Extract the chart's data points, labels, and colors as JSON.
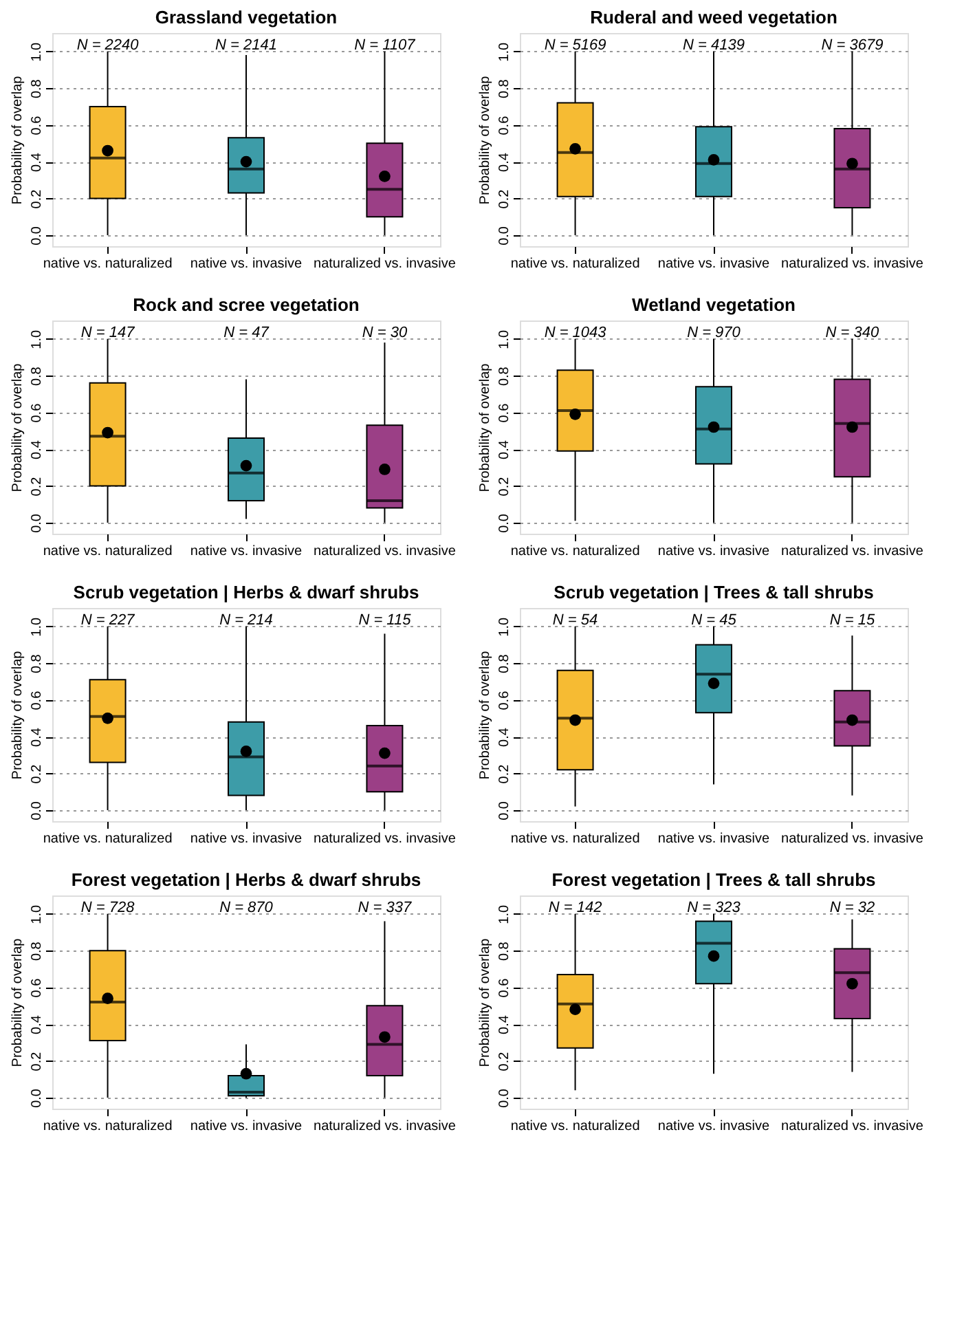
{
  "chart_data": [
    {
      "type": "box",
      "title": "Grassland vegetation",
      "ylabel": "Probability of overlap",
      "categories": [
        "native vs. naturalized",
        "native vs. invasive",
        "naturalized vs. invasive"
      ],
      "colors": [
        "#f6bb33",
        "#3d9ca8",
        "#9b3f86"
      ],
      "boxes": [
        {
          "low": 0,
          "q1": 0.2,
          "median": 0.42,
          "q3": 0.7,
          "high": 1.0,
          "mean": 0.46
        },
        {
          "low": 0,
          "q1": 0.23,
          "median": 0.36,
          "q3": 0.53,
          "high": 0.98,
          "mean": 0.4
        },
        {
          "low": 0,
          "q1": 0.1,
          "median": 0.25,
          "q3": 0.5,
          "high": 1.0,
          "mean": 0.32
        }
      ],
      "annotations": [
        "N = 2240",
        "N = 2141",
        "N = 1107"
      ],
      "ylim": [
        -0.06,
        1.1
      ],
      "yticks": [
        {
          "value": 0,
          "label": "0.0"
        },
        {
          "value": 0.2,
          "label": "0.2"
        },
        {
          "value": 0.4,
          "label": "0.4"
        },
        {
          "value": 0.6,
          "label": "0.6"
        },
        {
          "value": 0.8,
          "label": "0.8"
        },
        {
          "value": 1.0,
          "label": "1.0"
        }
      ],
      "grid": "y",
      "marker": "circle"
    },
    {
      "type": "box",
      "title": "Ruderal and weed vegetation",
      "ylabel": "Probability of overlap",
      "categories": [
        "native vs. naturalized",
        "native vs. invasive",
        "naturalized vs. invasive"
      ],
      "colors": [
        "#f6bb33",
        "#3d9ca8",
        "#9b3f86"
      ],
      "boxes": [
        {
          "low": 0,
          "q1": 0.21,
          "median": 0.45,
          "q3": 0.72,
          "high": 1.0,
          "mean": 0.47
        },
        {
          "low": 0,
          "q1": 0.21,
          "median": 0.39,
          "q3": 0.59,
          "high": 1.0,
          "mean": 0.41
        },
        {
          "low": 0,
          "q1": 0.15,
          "median": 0.36,
          "q3": 0.58,
          "high": 1.0,
          "mean": 0.39
        }
      ],
      "annotations": [
        "N = 5169",
        "N = 4139",
        "N = 3679"
      ],
      "ylim": [
        -0.06,
        1.1
      ],
      "yticks": [
        {
          "value": 0,
          "label": "0.0"
        },
        {
          "value": 0.2,
          "label": "0.2"
        },
        {
          "value": 0.4,
          "label": "0.4"
        },
        {
          "value": 0.6,
          "label": "0.6"
        },
        {
          "value": 0.8,
          "label": "0.8"
        },
        {
          "value": 1.0,
          "label": "1.0"
        }
      ],
      "grid": "y",
      "marker": "circle"
    },
    {
      "type": "box",
      "title": "Rock and scree vegetation",
      "ylabel": "Probability of overlap",
      "categories": [
        "native vs. naturalized",
        "native vs. invasive",
        "naturalized vs. invasive"
      ],
      "colors": [
        "#f6bb33",
        "#3d9ca8",
        "#9b3f86"
      ],
      "boxes": [
        {
          "low": 0,
          "q1": 0.2,
          "median": 0.47,
          "q3": 0.76,
          "high": 1.0,
          "mean": 0.49
        },
        {
          "low": 0.02,
          "q1": 0.12,
          "median": 0.27,
          "q3": 0.46,
          "high": 0.78,
          "mean": 0.31
        },
        {
          "low": 0,
          "q1": 0.08,
          "median": 0.12,
          "q3": 0.53,
          "high": 0.98,
          "mean": 0.29
        }
      ],
      "annotations": [
        "N = 147",
        "N = 47",
        "N = 30"
      ],
      "ylim": [
        -0.06,
        1.1
      ],
      "yticks": [
        {
          "value": 0,
          "label": "0.0"
        },
        {
          "value": 0.2,
          "label": "0.2"
        },
        {
          "value": 0.4,
          "label": "0.4"
        },
        {
          "value": 0.6,
          "label": "0.6"
        },
        {
          "value": 0.8,
          "label": "0.8"
        },
        {
          "value": 1.0,
          "label": "1.0"
        }
      ],
      "grid": "y",
      "marker": "circle"
    },
    {
      "type": "box",
      "title": "Wetland vegetation",
      "ylabel": "Probability of overlap",
      "categories": [
        "native vs. naturalized",
        "native vs. invasive",
        "naturalized vs. invasive"
      ],
      "colors": [
        "#f6bb33",
        "#3d9ca8",
        "#9b3f86"
      ],
      "boxes": [
        {
          "low": 0.01,
          "q1": 0.39,
          "median": 0.61,
          "q3": 0.83,
          "high": 1.0,
          "mean": 0.59
        },
        {
          "low": 0,
          "q1": 0.32,
          "median": 0.51,
          "q3": 0.74,
          "high": 1.0,
          "mean": 0.52
        },
        {
          "low": 0,
          "q1": 0.25,
          "median": 0.54,
          "q3": 0.78,
          "high": 1.0,
          "mean": 0.52
        }
      ],
      "annotations": [
        "N = 1043",
        "N = 970",
        "N = 340"
      ],
      "ylim": [
        -0.06,
        1.1
      ],
      "yticks": [
        {
          "value": 0,
          "label": "0.0"
        },
        {
          "value": 0.2,
          "label": "0.2"
        },
        {
          "value": 0.4,
          "label": "0.4"
        },
        {
          "value": 0.6,
          "label": "0.6"
        },
        {
          "value": 0.8,
          "label": "0.8"
        },
        {
          "value": 1.0,
          "label": "1.0"
        }
      ],
      "grid": "y",
      "marker": "circle"
    },
    {
      "type": "box",
      "title": "Scrub vegetation | Herbs & dwarf shrubs",
      "ylabel": "Probability of overlap",
      "categories": [
        "native vs. naturalized",
        "native vs. invasive",
        "naturalized vs. invasive"
      ],
      "colors": [
        "#f6bb33",
        "#3d9ca8",
        "#9b3f86"
      ],
      "boxes": [
        {
          "low": 0,
          "q1": 0.26,
          "median": 0.51,
          "q3": 0.71,
          "high": 1.0,
          "mean": 0.5
        },
        {
          "low": 0,
          "q1": 0.08,
          "median": 0.29,
          "q3": 0.48,
          "high": 1.0,
          "mean": 0.32
        },
        {
          "low": 0,
          "q1": 0.1,
          "median": 0.24,
          "q3": 0.46,
          "high": 0.96,
          "mean": 0.31
        }
      ],
      "annotations": [
        "N = 227",
        "N = 214",
        "N = 115"
      ],
      "ylim": [
        -0.06,
        1.1
      ],
      "yticks": [
        {
          "value": 0,
          "label": "0.0"
        },
        {
          "value": 0.2,
          "label": "0.2"
        },
        {
          "value": 0.4,
          "label": "0.4"
        },
        {
          "value": 0.6,
          "label": "0.6"
        },
        {
          "value": 0.8,
          "label": "0.8"
        },
        {
          "value": 1.0,
          "label": "1.0"
        }
      ],
      "grid": "y",
      "marker": "circle"
    },
    {
      "type": "box",
      "title": "Scrub vegetation | Trees & tall shrubs",
      "ylabel": "Probability of overlap",
      "categories": [
        "native vs. naturalized",
        "native vs. invasive",
        "naturalized vs. invasive"
      ],
      "colors": [
        "#f6bb33",
        "#3d9ca8",
        "#9b3f86"
      ],
      "boxes": [
        {
          "low": 0.02,
          "q1": 0.22,
          "median": 0.5,
          "q3": 0.76,
          "high": 1.0,
          "mean": 0.49
        },
        {
          "low": 0.14,
          "q1": 0.53,
          "median": 0.74,
          "q3": 0.9,
          "high": 1.0,
          "mean": 0.69
        },
        {
          "low": 0.08,
          "q1": 0.35,
          "median": 0.48,
          "q3": 0.65,
          "high": 0.95,
          "mean": 0.49
        }
      ],
      "annotations": [
        "N = 54",
        "N = 45",
        "N = 15"
      ],
      "ylim": [
        -0.06,
        1.1
      ],
      "yticks": [
        {
          "value": 0,
          "label": "0.0"
        },
        {
          "value": 0.2,
          "label": "0.2"
        },
        {
          "value": 0.4,
          "label": "0.4"
        },
        {
          "value": 0.6,
          "label": "0.6"
        },
        {
          "value": 0.8,
          "label": "0.8"
        },
        {
          "value": 1.0,
          "label": "1.0"
        }
      ],
      "grid": "y",
      "marker": "circle"
    },
    {
      "type": "box",
      "title": "Forest vegetation | Herbs & dwarf shrubs",
      "ylabel": "Probability of overlap",
      "categories": [
        "native vs. naturalized",
        "native vs. invasive",
        "naturalized vs. invasive"
      ],
      "colors": [
        "#f6bb33",
        "#3d9ca8",
        "#9b3f86"
      ],
      "boxes": [
        {
          "low": 0,
          "q1": 0.31,
          "median": 0.52,
          "q3": 0.8,
          "high": 1.0,
          "mean": 0.54
        },
        {
          "low": 0,
          "q1": 0.01,
          "median": 0.03,
          "q3": 0.12,
          "high": 0.29,
          "mean": 0.13
        },
        {
          "low": 0,
          "q1": 0.12,
          "median": 0.29,
          "q3": 0.5,
          "high": 0.96,
          "mean": 0.33
        }
      ],
      "annotations": [
        "N = 728",
        "N = 870",
        "N = 337"
      ],
      "ylim": [
        -0.06,
        1.1
      ],
      "yticks": [
        {
          "value": 0,
          "label": "0.0"
        },
        {
          "value": 0.2,
          "label": "0.2"
        },
        {
          "value": 0.4,
          "label": "0.4"
        },
        {
          "value": 0.6,
          "label": "0.6"
        },
        {
          "value": 0.8,
          "label": "0.8"
        },
        {
          "value": 1.0,
          "label": "1.0"
        }
      ],
      "grid": "y",
      "marker": "circle"
    },
    {
      "type": "box",
      "title": "Forest vegetation | Trees & tall shrubs",
      "ylabel": "Probability of overlap",
      "categories": [
        "native vs. naturalized",
        "native vs. invasive",
        "naturalized vs. invasive"
      ],
      "colors": [
        "#f6bb33",
        "#3d9ca8",
        "#9b3f86"
      ],
      "boxes": [
        {
          "low": 0.04,
          "q1": 0.27,
          "median": 0.51,
          "q3": 0.67,
          "high": 1.0,
          "mean": 0.48
        },
        {
          "low": 0.13,
          "q1": 0.62,
          "median": 0.84,
          "q3": 0.96,
          "high": 1.0,
          "mean": 0.77
        },
        {
          "low": 0.14,
          "q1": 0.43,
          "median": 0.68,
          "q3": 0.81,
          "high": 0.97,
          "mean": 0.62
        }
      ],
      "annotations": [
        "N = 142",
        "N = 323",
        "N = 32"
      ],
      "ylim": [
        -0.06,
        1.1
      ],
      "yticks": [
        {
          "value": 0,
          "label": "0.0"
        },
        {
          "value": 0.2,
          "label": "0.2"
        },
        {
          "value": 0.4,
          "label": "0.4"
        },
        {
          "value": 0.6,
          "label": "0.6"
        },
        {
          "value": 0.8,
          "label": "0.8"
        },
        {
          "value": 1.0,
          "label": "1.0"
        }
      ],
      "grid": "y",
      "marker": "circle"
    }
  ]
}
